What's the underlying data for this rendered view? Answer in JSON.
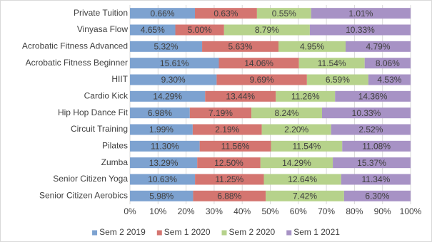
{
  "chart_data": {
    "type": "bar",
    "orientation": "horizontal",
    "stack": "percent",
    "categories": [
      "Private Tuition",
      "Vinyasa Flow",
      "Acrobatic Fitness Advanced",
      "Acrobatic Fitness Beginner",
      "HIIT",
      "Cardio Kick",
      "Hip Hop Dance Fit",
      "Circuit Training",
      "Pilates",
      "Zumba",
      "Senior Citizen Yoga",
      "Senior Citizen Aerobics"
    ],
    "series": [
      {
        "name": "Sem 2 2019",
        "color": "#7da2d0",
        "values": [
          0.66,
          4.65,
          5.32,
          15.61,
          9.3,
          14.29,
          6.98,
          1.99,
          11.3,
          13.29,
          10.63,
          5.98
        ],
        "value_labels": [
          "0.66%",
          "4.65%",
          "5.32%",
          "15.61%",
          "9.30%",
          "14.29%",
          "6.98%",
          "1.99%",
          "11.30%",
          "13.29%",
          "10.63%",
          "5.98%"
        ]
      },
      {
        "name": "Sem 1 2020",
        "color": "#d47570",
        "values": [
          0.63,
          5.0,
          5.63,
          14.06,
          9.69,
          13.44,
          7.19,
          2.19,
          11.56,
          12.5,
          11.25,
          6.88
        ],
        "value_labels": [
          "0.63%",
          "5.00%",
          "5.63%",
          "14.06%",
          "9.69%",
          "13.44%",
          "7.19%",
          "2.19%",
          "11.56%",
          "12.50%",
          "11.25%",
          "6.88%"
        ]
      },
      {
        "name": "Sem 2 2020",
        "color": "#b6d28b",
        "values": [
          0.55,
          8.79,
          4.95,
          11.54,
          6.59,
          11.26,
          8.24,
          2.2,
          11.54,
          14.29,
          12.64,
          7.42
        ],
        "value_labels": [
          "0.55%",
          "8.79%",
          "4.95%",
          "11.54%",
          "6.59%",
          "11.26%",
          "8.24%",
          "2.20%",
          "11.54%",
          "14.29%",
          "12.64%",
          "7.42%"
        ]
      },
      {
        "name": "Sem 1 2021",
        "color": "#a792c5",
        "values": [
          1.01,
          10.33,
          4.79,
          8.06,
          4.53,
          14.36,
          10.33,
          2.52,
          11.08,
          15.37,
          11.34,
          6.3
        ],
        "value_labels": [
          "1.01%",
          "10.33%",
          "4.79%",
          "8.06%",
          "4.53%",
          "14.36%",
          "10.33%",
          "2.52%",
          "11.08%",
          "15.37%",
          "11.34%",
          "6.30%"
        ]
      }
    ],
    "xlim": [
      0,
      100
    ],
    "xticks": [
      {
        "value": 0,
        "label": "0%"
      },
      {
        "value": 10,
        "label": "10%"
      },
      {
        "value": 20,
        "label": "20%"
      },
      {
        "value": 30,
        "label": "30%"
      },
      {
        "value": 40,
        "label": "40%"
      },
      {
        "value": 50,
        "label": "50%"
      },
      {
        "value": 60,
        "label": "60%"
      },
      {
        "value": 70,
        "label": "70%"
      },
      {
        "value": 80,
        "label": "80%"
      },
      {
        "value": 90,
        "label": "90%"
      },
      {
        "value": 100,
        "label": "100%"
      }
    ],
    "grid": true,
    "legend": "bottom"
  }
}
